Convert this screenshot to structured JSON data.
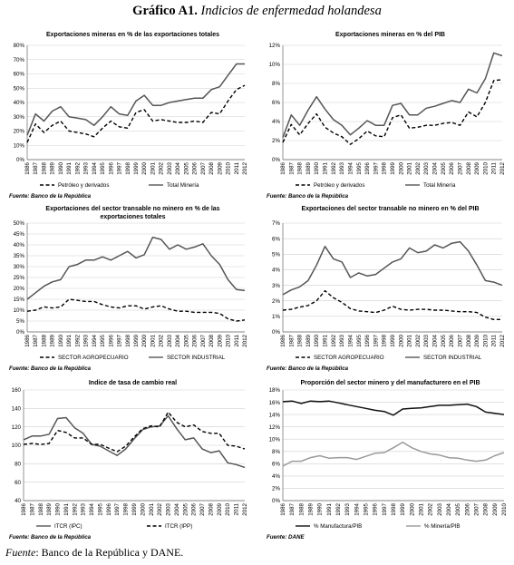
{
  "figure": {
    "label": "Gráfico A1.",
    "title": "Indicios de enfermedad holandesa",
    "source_label": "Fuente",
    "source_text": ": Banco de la República y DANE."
  },
  "chart_data": [
    {
      "type": "line",
      "title": "Exportaciones mineras en % de las exportaciones totales",
      "source": "Fuente: Banco de la República",
      "x": [
        "1986",
        "1987",
        "1988",
        "1989",
        "1990",
        "1991",
        "1992",
        "1993",
        "1994",
        "1995",
        "1996",
        "1997",
        "1998",
        "1999",
        "2000",
        "2001",
        "2002",
        "2003",
        "2004",
        "2005",
        "2006",
        "2007",
        "2008",
        "2009",
        "2010",
        "2011",
        "2012"
      ],
      "ylim": [
        0,
        80
      ],
      "yticks": [
        0,
        10,
        20,
        30,
        40,
        50,
        60,
        70,
        80
      ],
      "tick_suffix": "%",
      "series": [
        {
          "name": "Petróleo y derivados",
          "style": "dashed",
          "color": "#000000",
          "values": [
            12,
            25,
            19,
            24,
            27,
            20,
            19,
            18,
            16,
            22,
            27,
            23,
            22,
            33,
            35,
            27,
            28,
            27,
            26,
            26,
            27,
            26,
            33,
            32,
            41,
            49,
            52
          ]
        },
        {
          "name": "Total Minería",
          "style": "solid",
          "color": "#555555",
          "values": [
            17,
            32,
            27,
            34,
            37,
            30,
            29,
            28,
            24,
            30,
            37,
            32,
            31,
            41,
            45,
            38,
            38,
            40,
            41,
            42,
            43,
            43,
            49,
            51,
            59,
            67,
            67
          ]
        }
      ]
    },
    {
      "type": "line",
      "title": "Exportaciones mineras en % del PIB",
      "source": "Fuente: Banco de la República",
      "x": [
        "1986",
        "1987",
        "1988",
        "1989",
        "1990",
        "1991",
        "1992",
        "1993",
        "1994",
        "1995",
        "1996",
        "1997",
        "1998",
        "1999",
        "2000",
        "2001",
        "2002",
        "2003",
        "2004",
        "2005",
        "2006",
        "2007",
        "2008",
        "2009",
        "2010",
        "2011",
        "2012"
      ],
      "ylim": [
        0,
        12
      ],
      "yticks": [
        0,
        2,
        4,
        6,
        8,
        10,
        12
      ],
      "tick_suffix": "%",
      "series": [
        {
          "name": "Petróleo y derivados",
          "style": "dashed",
          "color": "#000000",
          "values": [
            1.8,
            3.7,
            2.6,
            3.8,
            4.8,
            3.4,
            2.8,
            2.4,
            1.6,
            2.2,
            3.0,
            2.5,
            2.4,
            4.4,
            4.7,
            3.3,
            3.4,
            3.6,
            3.6,
            3.8,
            3.9,
            3.6,
            5.0,
            4.5,
            6.0,
            8.3,
            8.4
          ]
        },
        {
          "name": "Total Minería",
          "style": "solid",
          "color": "#555555",
          "values": [
            2.3,
            4.7,
            3.6,
            5.2,
            6.6,
            5.3,
            4.2,
            3.6,
            2.6,
            3.3,
            4.1,
            3.6,
            3.6,
            5.7,
            5.9,
            4.7,
            4.7,
            5.4,
            5.6,
            5.9,
            6.2,
            6.0,
            7.4,
            7.0,
            8.5,
            11.2,
            10.9
          ]
        }
      ]
    },
    {
      "type": "line",
      "title": "Exportaciones del sector transable no minero en % de las exportaciones totales",
      "title_lines": [
        "Exportaciones del sector transable no minero en % de las",
        "exportaciones totales"
      ],
      "source": "Fuente: Banco de la República",
      "x": [
        "1986",
        "1987",
        "1988",
        "1989",
        "1990",
        "1991",
        "1992",
        "1993",
        "1994",
        "1995",
        "1996",
        "1997",
        "1998",
        "1999",
        "2000",
        "2001",
        "2002",
        "2003",
        "2004",
        "2005",
        "2006",
        "2007",
        "2008",
        "2009",
        "2010",
        "2011",
        "2012"
      ],
      "ylim": [
        0,
        50
      ],
      "yticks": [
        0,
        5,
        10,
        15,
        20,
        25,
        30,
        35,
        40,
        45,
        50
      ],
      "tick_suffix": "%",
      "series": [
        {
          "name": "SECTOR AGROPECUARIO",
          "style": "dashed",
          "color": "#000000",
          "values": [
            9.5,
            10,
            11.5,
            11,
            11.5,
            15,
            14.5,
            14,
            14,
            12.5,
            11.5,
            11,
            12,
            12,
            10.5,
            11.5,
            12,
            10.5,
            9.5,
            9.5,
            9,
            9,
            9,
            8.5,
            6,
            5,
            5.5
          ]
        },
        {
          "name": "SECTOR INDUSTRIAL",
          "style": "solid",
          "color": "#555555",
          "values": [
            15,
            18,
            21,
            23,
            24,
            30,
            31,
            33,
            33,
            34.5,
            33,
            35,
            37,
            34,
            35.5,
            43.5,
            42.5,
            38,
            40,
            38,
            39,
            40.5,
            35,
            31,
            24,
            19.5,
            19
          ]
        }
      ]
    },
    {
      "type": "line",
      "title": "Exportaciones del sector transable no minero en % del PIB",
      "source": "Fuente: Banco de la República",
      "x": [
        "1986",
        "1987",
        "1988",
        "1989",
        "1990",
        "1991",
        "1992",
        "1993",
        "1994",
        "1995",
        "1996",
        "1997",
        "1998",
        "1999",
        "2000",
        "2001",
        "2002",
        "2003",
        "2004",
        "2005",
        "2006",
        "2007",
        "2008",
        "2009",
        "2010",
        "2011",
        "2012"
      ],
      "ylim": [
        0,
        7
      ],
      "yticks": [
        0,
        1,
        2,
        3,
        4,
        5,
        6,
        7
      ],
      "tick_suffix": "%",
      "series": [
        {
          "name": "SECTOR AGROPECUARIO",
          "style": "dashed",
          "color": "#000000",
          "values": [
            1.4,
            1.45,
            1.6,
            1.7,
            2.0,
            2.65,
            2.2,
            1.9,
            1.5,
            1.35,
            1.3,
            1.25,
            1.4,
            1.65,
            1.45,
            1.4,
            1.45,
            1.45,
            1.4,
            1.4,
            1.35,
            1.3,
            1.3,
            1.25,
            0.95,
            0.8,
            0.8
          ]
        },
        {
          "name": "SECTOR INDUSTRIAL",
          "style": "solid",
          "color": "#555555",
          "values": [
            2.4,
            2.7,
            2.9,
            3.3,
            4.3,
            5.5,
            4.7,
            4.5,
            3.5,
            3.8,
            3.6,
            3.7,
            4.1,
            4.5,
            4.7,
            5.4,
            5.1,
            5.2,
            5.6,
            5.4,
            5.7,
            5.8,
            5.2,
            4.3,
            3.3,
            3.2,
            3.0
          ]
        }
      ]
    },
    {
      "type": "line",
      "title": "Indice de tasa de cambio real",
      "source": "Fuente: Banco de la República",
      "x": [
        "1986",
        "1987",
        "1988",
        "1989",
        "1990",
        "1991",
        "1992",
        "1993",
        "1994",
        "1995",
        "1996",
        "1997",
        "1998",
        "1999",
        "2000",
        "2001",
        "2002",
        "2003",
        "2004",
        "2005",
        "2006",
        "2007",
        "2008",
        "2009",
        "2010",
        "2011",
        "2012"
      ],
      "ylim": [
        40,
        160
      ],
      "yticks": [
        40,
        60,
        80,
        100,
        120,
        140,
        160
      ],
      "tick_suffix": "",
      "series": [
        {
          "name": "ITCR (IPC)",
          "style": "solid",
          "color": "#555555",
          "values": [
            106,
            110,
            110,
            112,
            129,
            130,
            119,
            113,
            101,
            99,
            94,
            89,
            96,
            107,
            117,
            120,
            121,
            132,
            118,
            106,
            108,
            96,
            92,
            94,
            81,
            79,
            76
          ]
        },
        {
          "name": "ITCR (IPP)",
          "style": "dashed",
          "color": "#000000",
          "values": [
            101,
            102,
            101,
            102,
            116,
            114,
            108,
            108,
            101,
            101,
            97,
            93,
            99,
            109,
            118,
            121,
            120,
            136,
            125,
            120,
            122,
            115,
            113,
            113,
            100,
            99,
            96
          ]
        }
      ]
    },
    {
      "type": "line",
      "title": "Proporción del sector minero y del manufacturero en el PIB",
      "source": "Fuente: DANE",
      "x": [
        "1986",
        "1987",
        "1988",
        "1989",
        "1990",
        "1991",
        "1992",
        "1993",
        "1994",
        "1995",
        "1996",
        "1997",
        "1998",
        "1999",
        "2000",
        "2001",
        "2002",
        "2003",
        "2004",
        "2005",
        "2006",
        "2007",
        "2008",
        "2009",
        "2010"
      ],
      "ylim": [
        0,
        18
      ],
      "yticks": [
        0,
        2,
        4,
        6,
        8,
        10,
        12,
        14,
        16,
        18
      ],
      "tick_suffix": "%",
      "series": [
        {
          "name": "% Manufactura/PIB",
          "style": "solid",
          "color": "#111111",
          "values": [
            16.1,
            16.2,
            15.8,
            16.2,
            16.1,
            16.2,
            15.9,
            15.6,
            15.3,
            15.0,
            14.7,
            14.5,
            13.9,
            14.9,
            15.0,
            15.1,
            15.3,
            15.5,
            15.5,
            15.6,
            15.7,
            15.3,
            14.4,
            14.2,
            14.0
          ]
        },
        {
          "name": "% Minería/PIB",
          "style": "solid",
          "color": "#9a9a9a",
          "values": [
            5.6,
            6.4,
            6.4,
            7.0,
            7.3,
            6.9,
            7.0,
            7.0,
            6.7,
            7.2,
            7.7,
            7.8,
            8.6,
            9.5,
            8.6,
            8.0,
            7.6,
            7.4,
            7.0,
            6.9,
            6.6,
            6.4,
            6.6,
            7.3,
            7.8
          ]
        }
      ]
    }
  ]
}
